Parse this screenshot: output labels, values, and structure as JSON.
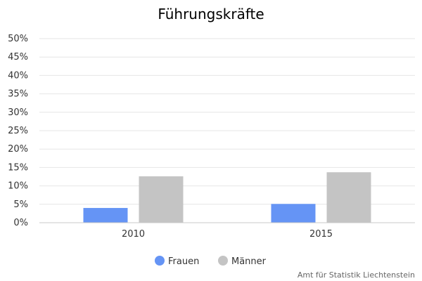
{
  "chart_data": {
    "type": "bar",
    "title": "Führungskräfte",
    "categories": [
      "2010",
      "2015"
    ],
    "series": [
      {
        "name": "Frauen",
        "values": [
          4.0,
          5.1
        ],
        "color": "#6594f5"
      },
      {
        "name": "Männer",
        "values": [
          12.6,
          13.7
        ],
        "color": "#c4c4c4"
      }
    ],
    "ylim": [
      0,
      50
    ],
    "yticks": [
      0,
      5,
      10,
      15,
      20,
      25,
      30,
      35,
      40,
      45,
      50
    ],
    "ytick_format": "%",
    "grid": true,
    "legend": "bottom-center"
  },
  "credits": "Amt für Statistik Liechtenstein"
}
